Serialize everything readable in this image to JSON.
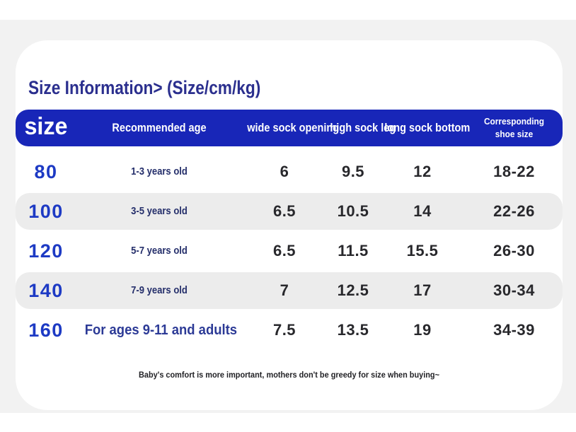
{
  "page_title": "Size Information> (Size/cm/kg)",
  "colors": {
    "page_band": "#f2f2f2",
    "card": "#ffffff",
    "header_blue": "#1826b8",
    "title_navy": "#2b2f8e",
    "size_number_blue": "#1d3ac4",
    "alt_row_gray": "#ececec",
    "value_text": "#28282c"
  },
  "chart_data": {
    "type": "table",
    "title": "Size Information> (Size/cm/kg)",
    "columns": [
      "size",
      "Recommended age",
      "wide sock opening",
      "high sock leg",
      "long sock bottom",
      "Corresponding shoe size"
    ],
    "rows": [
      [
        "80",
        "1-3 years old",
        "6",
        "9.5",
        "12",
        "18-22"
      ],
      [
        "100",
        "3-5 years old",
        "6.5",
        "10.5",
        "14",
        "22-26"
      ],
      [
        "120",
        "5-7 years old",
        "6.5",
        "11.5",
        "15.5",
        "26-30"
      ],
      [
        "140",
        "7-9 years old",
        "7",
        "12.5",
        "17",
        "30-34"
      ],
      [
        "160",
        "For ages 9-11 and adults",
        "7.5",
        "13.5",
        "19",
        "34-39"
      ]
    ],
    "note": "Baby's comfort is more important, mothers don't be greedy for size when buying~"
  }
}
